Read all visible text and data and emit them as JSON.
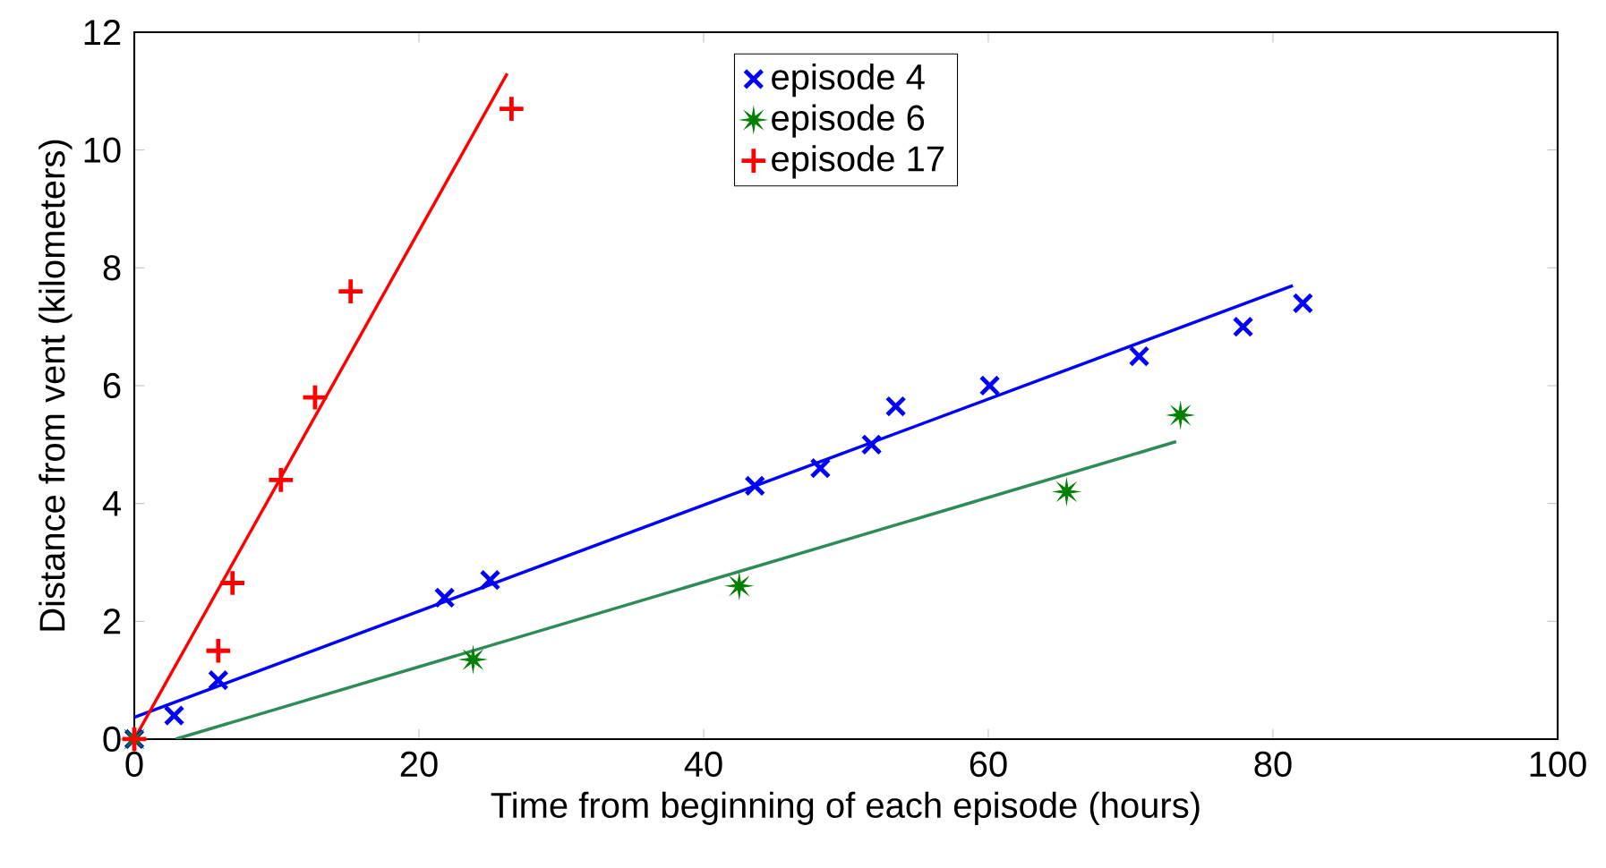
{
  "chart_data": {
    "type": "scatter",
    "xlabel": "Time from beginning of each episode (hours)",
    "ylabel": "Distance from vent (kilometers)",
    "xlim": [
      0,
      100
    ],
    "ylim": [
      0,
      12
    ],
    "xticks": [
      0,
      20,
      40,
      60,
      80,
      100
    ],
    "yticks": [
      0,
      2,
      4,
      6,
      8,
      10,
      12
    ],
    "grid": false,
    "legend": "top",
    "series": [
      {
        "name": "episode 4",
        "marker": "cross",
        "color": "#0000ff",
        "x": [
          0,
          2.8,
          5.9,
          21.8,
          25,
          43.6,
          48.2,
          51.8,
          53.5,
          60.1,
          70.6,
          77.9,
          82.1
        ],
        "values": [
          0,
          0.4,
          1.0,
          2.4,
          2.7,
          4.3,
          4.6,
          5.0,
          5.65,
          6.0,
          6.5,
          7.0,
          7.4
        ]
      },
      {
        "name": "episode 6",
        "marker": "star",
        "color": "#008000",
        "x": [
          0,
          23.8,
          42.5,
          65.5,
          73.5
        ],
        "values": [
          0,
          1.35,
          2.6,
          4.2,
          5.5
        ]
      },
      {
        "name": "episode 17",
        "marker": "plus",
        "color": "#ff0000",
        "x": [
          0,
          5.9,
          6.9,
          10.3,
          12.7,
          15.2,
          26.5
        ],
        "values": [
          0,
          1.5,
          2.65,
          4.4,
          5.8,
          7.6,
          10.7
        ]
      },
      {
        "type": "line",
        "color": "#0000ff",
        "x": [
          0,
          81.4
        ],
        "values": [
          0.37,
          7.7
        ]
      },
      {
        "type": "line",
        "color": "#2e8b57",
        "x": [
          2.9,
          73.2
        ],
        "values": [
          0,
          5.05
        ]
      },
      {
        "type": "line",
        "color": "#ff0000",
        "x": [
          0,
          26.2
        ],
        "values": [
          0,
          11.3
        ]
      }
    ]
  }
}
